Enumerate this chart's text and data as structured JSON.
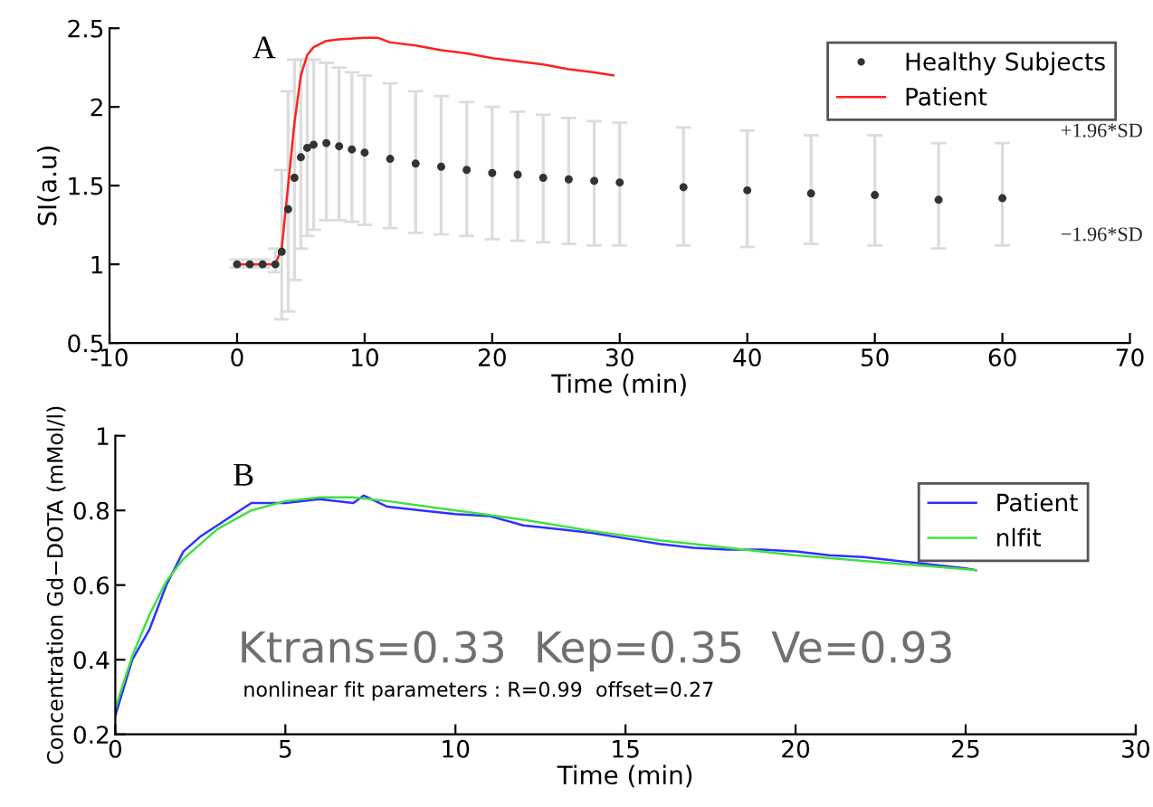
{
  "chart_data": [
    {
      "type": "scatter",
      "xlabel": "Time (min)",
      "ylabel": "SI(a.u)",
      "xlim": [
        -10,
        70
      ],
      "ylim": [
        0.5,
        2.5
      ],
      "xticks": [
        -10,
        0,
        10,
        20,
        30,
        40,
        50,
        60,
        70
      ],
      "yticks": [
        0.5,
        1,
        1.5,
        2,
        2.5
      ],
      "grid": false,
      "legend": "top right",
      "annotations": [
        "A",
        "+1.96*SD",
        "−1.96*SD"
      ],
      "series": [
        {
          "name": "Healthy Subjects",
          "type": "scatter",
          "marker": "circle",
          "color": "#333333",
          "x": [
            0,
            1,
            2,
            3,
            3.5,
            4,
            4.5,
            5,
            5.5,
            6,
            7,
            8,
            9,
            10,
            12,
            14,
            16,
            18,
            20,
            22,
            24,
            26,
            28,
            30,
            35,
            40,
            45,
            50,
            55,
            60
          ],
          "values": [
            1.0,
            1.0,
            1.0,
            1.0,
            1.08,
            1.35,
            1.55,
            1.68,
            1.74,
            1.76,
            1.77,
            1.75,
            1.73,
            1.71,
            1.67,
            1.64,
            1.62,
            1.6,
            1.58,
            1.57,
            1.55,
            1.54,
            1.53,
            1.52,
            1.49,
            1.47,
            1.45,
            1.44,
            1.41,
            1.42
          ],
          "errors": [
            [
              0.98,
              1.03
            ],
            [
              0.98,
              1.03
            ],
            [
              0.98,
              1.03
            ],
            [
              0.95,
              1.1
            ],
            [
              0.65,
              1.6
            ],
            [
              0.7,
              2.1
            ],
            [
              0.9,
              2.3
            ],
            [
              1.1,
              2.3
            ],
            [
              1.18,
              2.3
            ],
            [
              1.22,
              2.3
            ],
            [
              1.28,
              2.28
            ],
            [
              1.28,
              2.25
            ],
            [
              1.27,
              2.22
            ],
            [
              1.25,
              2.2
            ],
            [
              1.23,
              2.15
            ],
            [
              1.2,
              2.1
            ],
            [
              1.19,
              2.07
            ],
            [
              1.18,
              2.03
            ],
            [
              1.16,
              2.0
            ],
            [
              1.15,
              1.97
            ],
            [
              1.14,
              1.95
            ],
            [
              1.13,
              1.93
            ],
            [
              1.12,
              1.91
            ],
            [
              1.12,
              1.9
            ],
            [
              1.12,
              1.87
            ],
            [
              1.11,
              1.85
            ],
            [
              1.13,
              1.82
            ],
            [
              1.12,
              1.82
            ],
            [
              1.1,
              1.77
            ],
            [
              1.12,
              1.77
            ]
          ]
        },
        {
          "name": "Patient",
          "type": "line",
          "color": "#ff2020",
          "x": [
            0,
            1,
            2,
            3,
            3.5,
            4,
            4.5,
            5,
            5.5,
            6,
            7,
            8,
            10,
            11,
            12,
            14,
            16,
            18,
            20,
            22,
            24,
            26,
            28,
            29.5
          ],
          "values": [
            1.0,
            1.0,
            1.0,
            1.0,
            1.1,
            1.5,
            1.9,
            2.2,
            2.33,
            2.38,
            2.42,
            2.43,
            2.44,
            2.44,
            2.41,
            2.39,
            2.36,
            2.34,
            2.31,
            2.29,
            2.27,
            2.24,
            2.22,
            2.2
          ]
        }
      ]
    },
    {
      "type": "line",
      "xlabel": "Time (min)",
      "ylabel": "Concentration Gd−DOTA (mMol/l)",
      "xlim": [
        0,
        30
      ],
      "ylim": [
        0.2,
        1
      ],
      "xticks": [
        0,
        5,
        10,
        15,
        20,
        25,
        30
      ],
      "yticks": [
        0.2,
        0.4,
        0.6,
        0.8,
        1
      ],
      "grid": false,
      "legend": "top right",
      "annotations": [
        "B",
        "Ktrans=0.33  Kep=0.35  Ve=0.93",
        "nonlinear fit parameters : R=0.99  offset=0.27"
      ],
      "series": [
        {
          "name": "Patient",
          "color": "#3030ff",
          "x": [
            0,
            0.5,
            1,
            1.5,
            2,
            2.5,
            3,
            3.5,
            4,
            5,
            6,
            7,
            7.3,
            8,
            9,
            10,
            11,
            12,
            13,
            14,
            15,
            16,
            17,
            18,
            19,
            20,
            21,
            22,
            23,
            24,
            25,
            25.3
          ],
          "values": [
            0.25,
            0.4,
            0.48,
            0.6,
            0.69,
            0.73,
            0.76,
            0.79,
            0.82,
            0.82,
            0.83,
            0.82,
            0.84,
            0.81,
            0.8,
            0.79,
            0.785,
            0.76,
            0.75,
            0.74,
            0.725,
            0.71,
            0.7,
            0.695,
            0.695,
            0.69,
            0.68,
            0.675,
            0.665,
            0.655,
            0.645,
            0.64
          ]
        },
        {
          "name": "nlfit",
          "color": "#40e040",
          "x": [
            0,
            0.5,
            1,
            1.5,
            2,
            3,
            4,
            5,
            6,
            7,
            8,
            10,
            12,
            14,
            16,
            18,
            20,
            22,
            24,
            25.3
          ],
          "values": [
            0.27,
            0.41,
            0.52,
            0.61,
            0.67,
            0.75,
            0.8,
            0.825,
            0.835,
            0.835,
            0.825,
            0.8,
            0.775,
            0.745,
            0.72,
            0.7,
            0.68,
            0.665,
            0.65,
            0.64
          ]
        }
      ]
    }
  ]
}
